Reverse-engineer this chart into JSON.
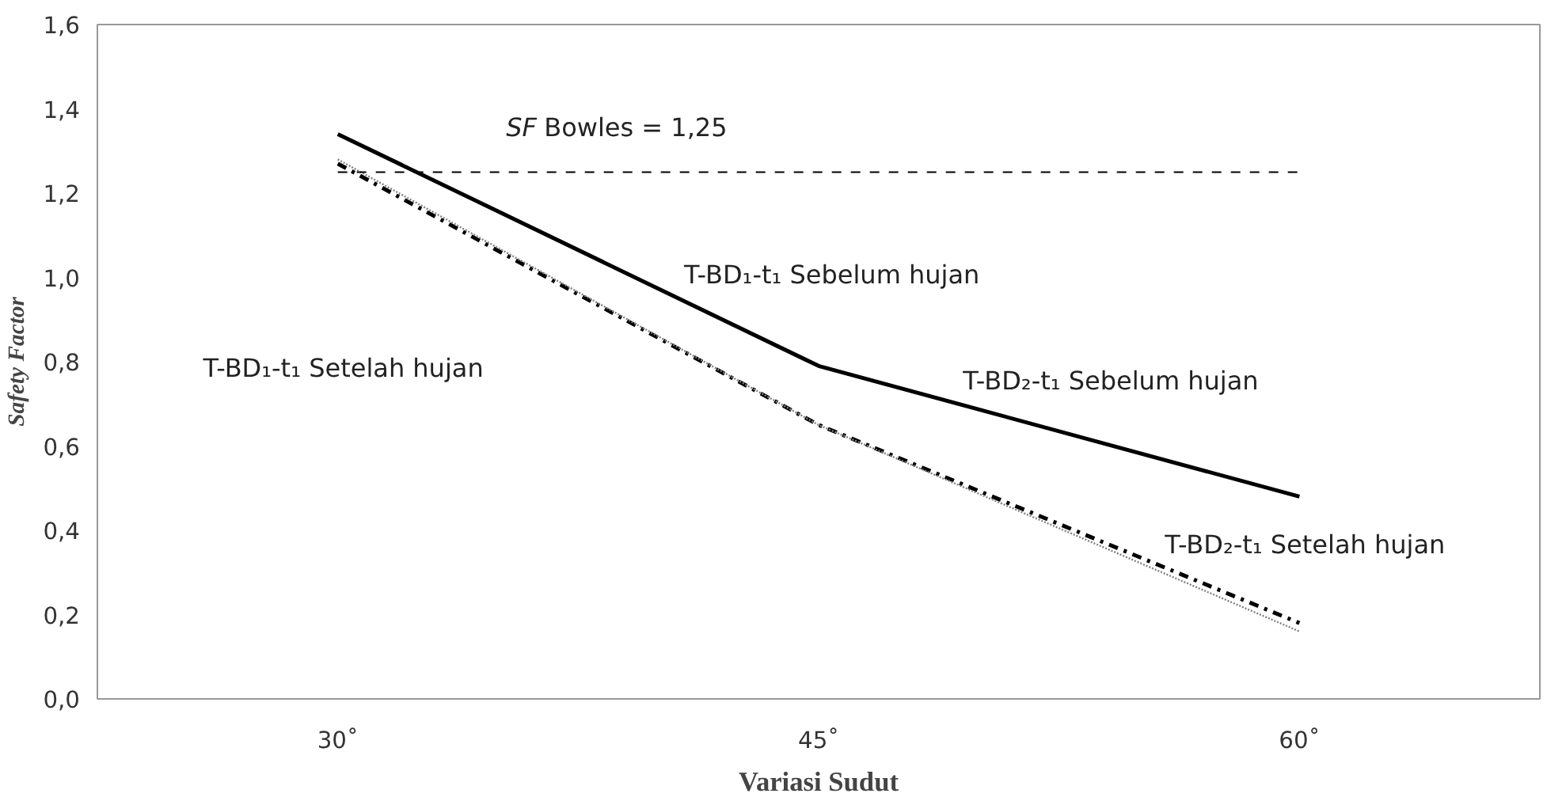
{
  "chart_data": {
    "type": "line",
    "xlabel": "Variasi Sudut",
    "ylabel": "Safety Factor",
    "categories": [
      "30˚",
      "45˚",
      "60˚"
    ],
    "series": [
      {
        "color": "#000000",
        "values": [
          1.34,
          0.79,
          0.48
        ],
        "line_style": "solid"
      },
      {
        "color": "#000000",
        "values": [
          1.27,
          0.65,
          0.18
        ],
        "line_style": "dashdot"
      },
      {
        "color": "#808080",
        "values": [
          1.28,
          0.65,
          0.16
        ],
        "line_style": "dotted"
      }
    ],
    "ylim": [
      0,
      1.6
    ],
    "yticks": [
      {
        "value": 0,
        "label": "0,0"
      },
      {
        "value": 0.2,
        "label": "0,2"
      },
      {
        "value": 0.4,
        "label": "0,4"
      },
      {
        "value": 0.6,
        "label": "0,6"
      },
      {
        "value": 0.8,
        "label": "0,8"
      },
      {
        "value": 1.0,
        "label": "1,0"
      },
      {
        "value": 1.2,
        "label": "1,2"
      },
      {
        "value": 1.4,
        "label": "1,4"
      },
      {
        "value": 1.6,
        "label": "1,6"
      }
    ],
    "ref_lines": [
      {
        "axis": "y",
        "value": 1.25,
        "label": "SF Bowles = 1,25",
        "line_style": "dashed",
        "color": "#000000"
      }
    ],
    "annotations": [
      "T-BD₁-t₁ Sebelum hujan",
      "T-BD₁-t₁ Setelah hujan",
      "T-BD₂-t₁ Sebelum hujan",
      "T-BD₂-t₁ Setelah hujan"
    ],
    "grid": false,
    "marker": "none"
  }
}
